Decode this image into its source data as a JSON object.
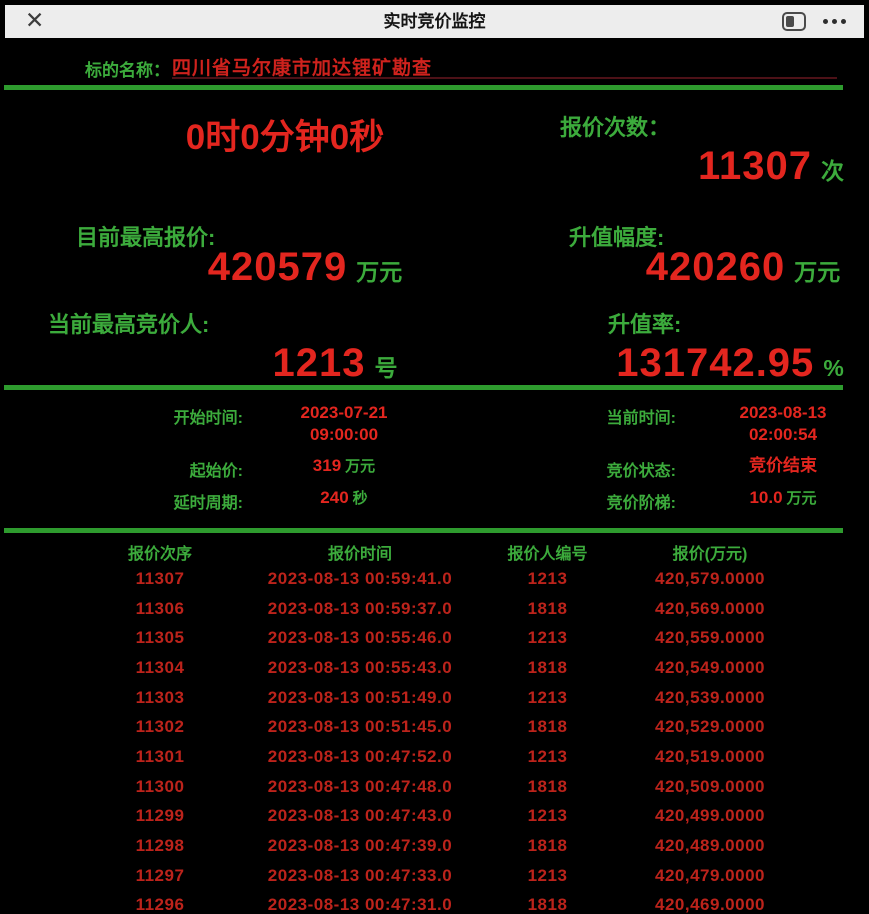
{
  "titlebar": {
    "close_icon": "✕",
    "title": "实时竞价监控"
  },
  "subject": {
    "label": "标的名称：",
    "value": "四川省马尔康市加达锂矿勘查"
  },
  "stats": {
    "countdown_timer": "0时0分钟0秒",
    "bid_count": {
      "label": "报价次数：",
      "value": "11307",
      "unit": "次"
    },
    "highest_bid": {
      "label": "目前最高报价:",
      "value": "420579",
      "unit": "万元"
    },
    "appreciation": {
      "label": "升值幅度:",
      "value": "420260",
      "unit": "万元"
    },
    "highest_bidder": {
      "label": "当前最高竞价人:",
      "value": "1213",
      "unit": "号"
    },
    "appreciation_rate": {
      "label": "升值率:",
      "value": "131742.95",
      "unit": "%"
    }
  },
  "info": {
    "start_time": {
      "label": "开始时间:",
      "line1": "2023-07-21",
      "line2": "09:00:00"
    },
    "current_time": {
      "label": "当前时间:",
      "line1": "2023-08-13",
      "line2": "02:00:54"
    },
    "start_price": {
      "label": "起始价:",
      "value": "319",
      "unit": "万元"
    },
    "bid_status": {
      "label": "竞价状态:",
      "value": "竞价结束",
      "unit": ""
    },
    "delay_period": {
      "label": "延时周期:",
      "value": "240",
      "unit": "秒"
    },
    "bid_increment": {
      "label": "竞价阶梯:",
      "value": "10.0",
      "unit": "万元"
    }
  },
  "table": {
    "headers": [
      "报价次序",
      "报价时间",
      "报价人编号",
      "报价(万元)"
    ],
    "rows": [
      [
        "11307",
        "2023-08-13 00:59:41.0",
        "1213",
        "420,579.0000"
      ],
      [
        "11306",
        "2023-08-13 00:59:37.0",
        "1818",
        "420,569.0000"
      ],
      [
        "11305",
        "2023-08-13 00:55:46.0",
        "1213",
        "420,559.0000"
      ],
      [
        "11304",
        "2023-08-13 00:55:43.0",
        "1818",
        "420,549.0000"
      ],
      [
        "11303",
        "2023-08-13 00:51:49.0",
        "1213",
        "420,539.0000"
      ],
      [
        "11302",
        "2023-08-13 00:51:45.0",
        "1818",
        "420,529.0000"
      ],
      [
        "11301",
        "2023-08-13 00:47:52.0",
        "1213",
        "420,519.0000"
      ],
      [
        "11300",
        "2023-08-13 00:47:48.0",
        "1818",
        "420,509.0000"
      ],
      [
        "11299",
        "2023-08-13 00:47:43.0",
        "1213",
        "420,499.0000"
      ],
      [
        "11298",
        "2023-08-13 00:47:39.0",
        "1818",
        "420,489.0000"
      ],
      [
        "11297",
        "2023-08-13 00:47:33.0",
        "1213",
        "420,479.0000"
      ],
      [
        "11296",
        "2023-08-13 00:47:31.0",
        "1818",
        "420,469.0000"
      ]
    ]
  },
  "colors": {
    "label_green": "#3cab3c",
    "line_green": "#2e9b2e",
    "value_red": "#e3261f",
    "subject_red": "#cf221d",
    "table_red": "#bc231b",
    "titlebar_bg": "#ededed"
  }
}
